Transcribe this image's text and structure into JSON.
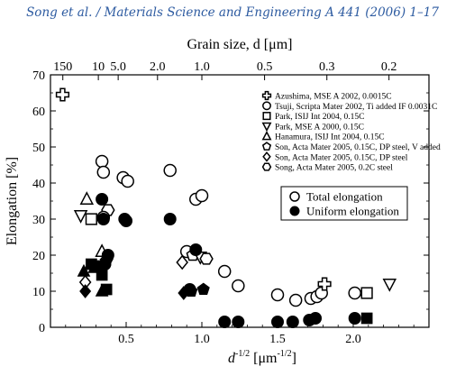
{
  "header": {
    "citation": "Song et al. / Materials Science and Engineering A 441 (2006) 1–17"
  },
  "chart_data": {
    "type": "scatter",
    "xlabel": "d",
    "xlabel_sup": "-1/2",
    "xlabel_unit_open": "  [μm",
    "xlabel_unit_sup": "-1/2",
    "xlabel_unit_close": "]",
    "ylabel": "Elongation [%]",
    "top_axis_label": "Grain size, d  [μm]",
    "xlim": [
      0,
      2.5
    ],
    "ylim": [
      0,
      70
    ],
    "x_ticks": [
      0.5,
      1.0,
      1.5,
      2.0
    ],
    "x_tick_labels": [
      "0.5",
      "1.0",
      "1.5",
      "2.0"
    ],
    "y_ticks": [
      0,
      10,
      20,
      30,
      40,
      50,
      60,
      70
    ],
    "y_tick_labels": [
      "0",
      "10",
      "20",
      "30",
      "40",
      "50",
      "60",
      "70"
    ],
    "top_ticks": [
      {
        "d": 150,
        "label": "150"
      },
      {
        "d": 10,
        "label": "10"
      },
      {
        "d": 5.0,
        "label": "5.0"
      },
      {
        "d": 2.0,
        "label": "2.0"
      },
      {
        "d": 1.0,
        "label": "1.0"
      },
      {
        "d": 0.5,
        "label": "0.5"
      },
      {
        "d": 0.3,
        "label": "0.3"
      },
      {
        "d": 0.2,
        "label": "0.2"
      }
    ],
    "sources": [
      {
        "label": "Azushima, MSE A 2002, 0.0015C",
        "marker": "cross"
      },
      {
        "label": "Tsuji, Scripta Mater 2002, Ti added IF 0.0031C",
        "marker": "circle"
      },
      {
        "label": "Park, ISIJ Int 2004, 0.15C",
        "marker": "square"
      },
      {
        "label": "Park, MSE A 2000, 0.15C",
        "marker": "tri-down"
      },
      {
        "label": "Hanamura, ISIJ Int 2004, 0.15C",
        "marker": "tri-up"
      },
      {
        "label": "Son, Acta Mater 2005, 0.15C, DP steel, V added",
        "marker": "pentagon"
      },
      {
        "label": "Son, Acta Mater 2005, 0.15C, DP steel",
        "marker": "diamond"
      },
      {
        "label": "Song, Acta Mater 2005, 0.2C steel",
        "marker": "hexagon"
      }
    ],
    "fill_legend": [
      {
        "label": "Total elongation",
        "filled": false
      },
      {
        "label": "Uniform elongation",
        "filled": true
      }
    ],
    "series": [
      {
        "name": "Total elongation",
        "filled": false,
        "points": [
          {
            "x": 0.08,
            "y": 64.5,
            "source": 0
          },
          {
            "x": 0.34,
            "y": 46,
            "source": 1
          },
          {
            "x": 0.35,
            "y": 43,
            "source": 1
          },
          {
            "x": 0.48,
            "y": 41.5,
            "source": 1
          },
          {
            "x": 0.51,
            "y": 40.5,
            "source": 1
          },
          {
            "x": 0.79,
            "y": 43.5,
            "source": 1
          },
          {
            "x": 0.96,
            "y": 35.5,
            "source": 1
          },
          {
            "x": 1.0,
            "y": 36.5,
            "source": 1
          },
          {
            "x": 1.15,
            "y": 15.5,
            "source": 1
          },
          {
            "x": 1.24,
            "y": 11.5,
            "source": 1
          },
          {
            "x": 1.5,
            "y": 9,
            "source": 1
          },
          {
            "x": 1.62,
            "y": 7.5,
            "source": 1
          },
          {
            "x": 1.72,
            "y": 8,
            "source": 1
          },
          {
            "x": 1.76,
            "y": 8.5,
            "source": 1
          },
          {
            "x": 1.79,
            "y": 9.5,
            "source": 1
          },
          {
            "x": 2.01,
            "y": 9.5,
            "source": 1
          },
          {
            "x": 1.81,
            "y": 12,
            "source": 0
          },
          {
            "x": 2.24,
            "y": 12,
            "source": 3
          },
          {
            "x": 0.38,
            "y": 32.5,
            "source": 7
          },
          {
            "x": 0.2,
            "y": 31,
            "source": 3
          },
          {
            "x": 0.24,
            "y": 35.5,
            "source": 4
          },
          {
            "x": 0.27,
            "y": 30,
            "source": 2
          },
          {
            "x": 0.35,
            "y": 30.5,
            "source": 1
          },
          {
            "x": 0.34,
            "y": 21,
            "source": 4
          },
          {
            "x": 0.37,
            "y": 17.5,
            "source": 3
          },
          {
            "x": 0.37,
            "y": 19,
            "source": 6
          },
          {
            "x": 0.23,
            "y": 12.5,
            "source": 6
          },
          {
            "x": 0.87,
            "y": 18,
            "source": 6
          },
          {
            "x": 0.9,
            "y": 21,
            "source": 1
          },
          {
            "x": 0.94,
            "y": 20,
            "source": 5
          },
          {
            "x": 0.99,
            "y": 19.5,
            "source": 3
          },
          {
            "x": 1.03,
            "y": 19,
            "source": 7
          },
          {
            "x": 2.09,
            "y": 9.5,
            "source": 2
          }
        ]
      },
      {
        "name": "Uniform elongation",
        "filled": true,
        "points": [
          {
            "x": 0.34,
            "y": 35.5,
            "source": 1
          },
          {
            "x": 0.35,
            "y": 30,
            "source": 1
          },
          {
            "x": 0.49,
            "y": 30,
            "source": 1
          },
          {
            "x": 0.5,
            "y": 29.5,
            "source": 1
          },
          {
            "x": 0.79,
            "y": 30,
            "source": 1
          },
          {
            "x": 0.96,
            "y": 21.5,
            "source": 1
          },
          {
            "x": 0.38,
            "y": 20,
            "source": 1
          },
          {
            "x": 0.22,
            "y": 15.5,
            "source": 4
          },
          {
            "x": 0.27,
            "y": 17.5,
            "source": 2
          },
          {
            "x": 0.29,
            "y": 16.5,
            "source": 4
          },
          {
            "x": 0.33,
            "y": 17,
            "source": 2
          },
          {
            "x": 0.34,
            "y": 14.5,
            "source": 2
          },
          {
            "x": 0.36,
            "y": 17.5,
            "source": 1
          },
          {
            "x": 0.23,
            "y": 10,
            "source": 6
          },
          {
            "x": 0.34,
            "y": 10,
            "source": 4
          },
          {
            "x": 0.37,
            "y": 10.5,
            "source": 2
          },
          {
            "x": 0.88,
            "y": 9.5,
            "source": 6
          },
          {
            "x": 0.92,
            "y": 10.5,
            "source": 1
          },
          {
            "x": 0.93,
            "y": 10,
            "source": 5
          },
          {
            "x": 1.01,
            "y": 10.5,
            "source": 5
          },
          {
            "x": 1.15,
            "y": 1.5,
            "source": 1
          },
          {
            "x": 1.24,
            "y": 1.5,
            "source": 1
          },
          {
            "x": 1.5,
            "y": 1.5,
            "source": 1
          },
          {
            "x": 1.6,
            "y": 1.5,
            "source": 1
          },
          {
            "x": 1.71,
            "y": 2,
            "source": 1
          },
          {
            "x": 1.75,
            "y": 2.5,
            "source": 1
          },
          {
            "x": 2.01,
            "y": 2.5,
            "source": 1
          },
          {
            "x": 2.09,
            "y": 2.5,
            "source": 2
          }
        ]
      }
    ]
  }
}
